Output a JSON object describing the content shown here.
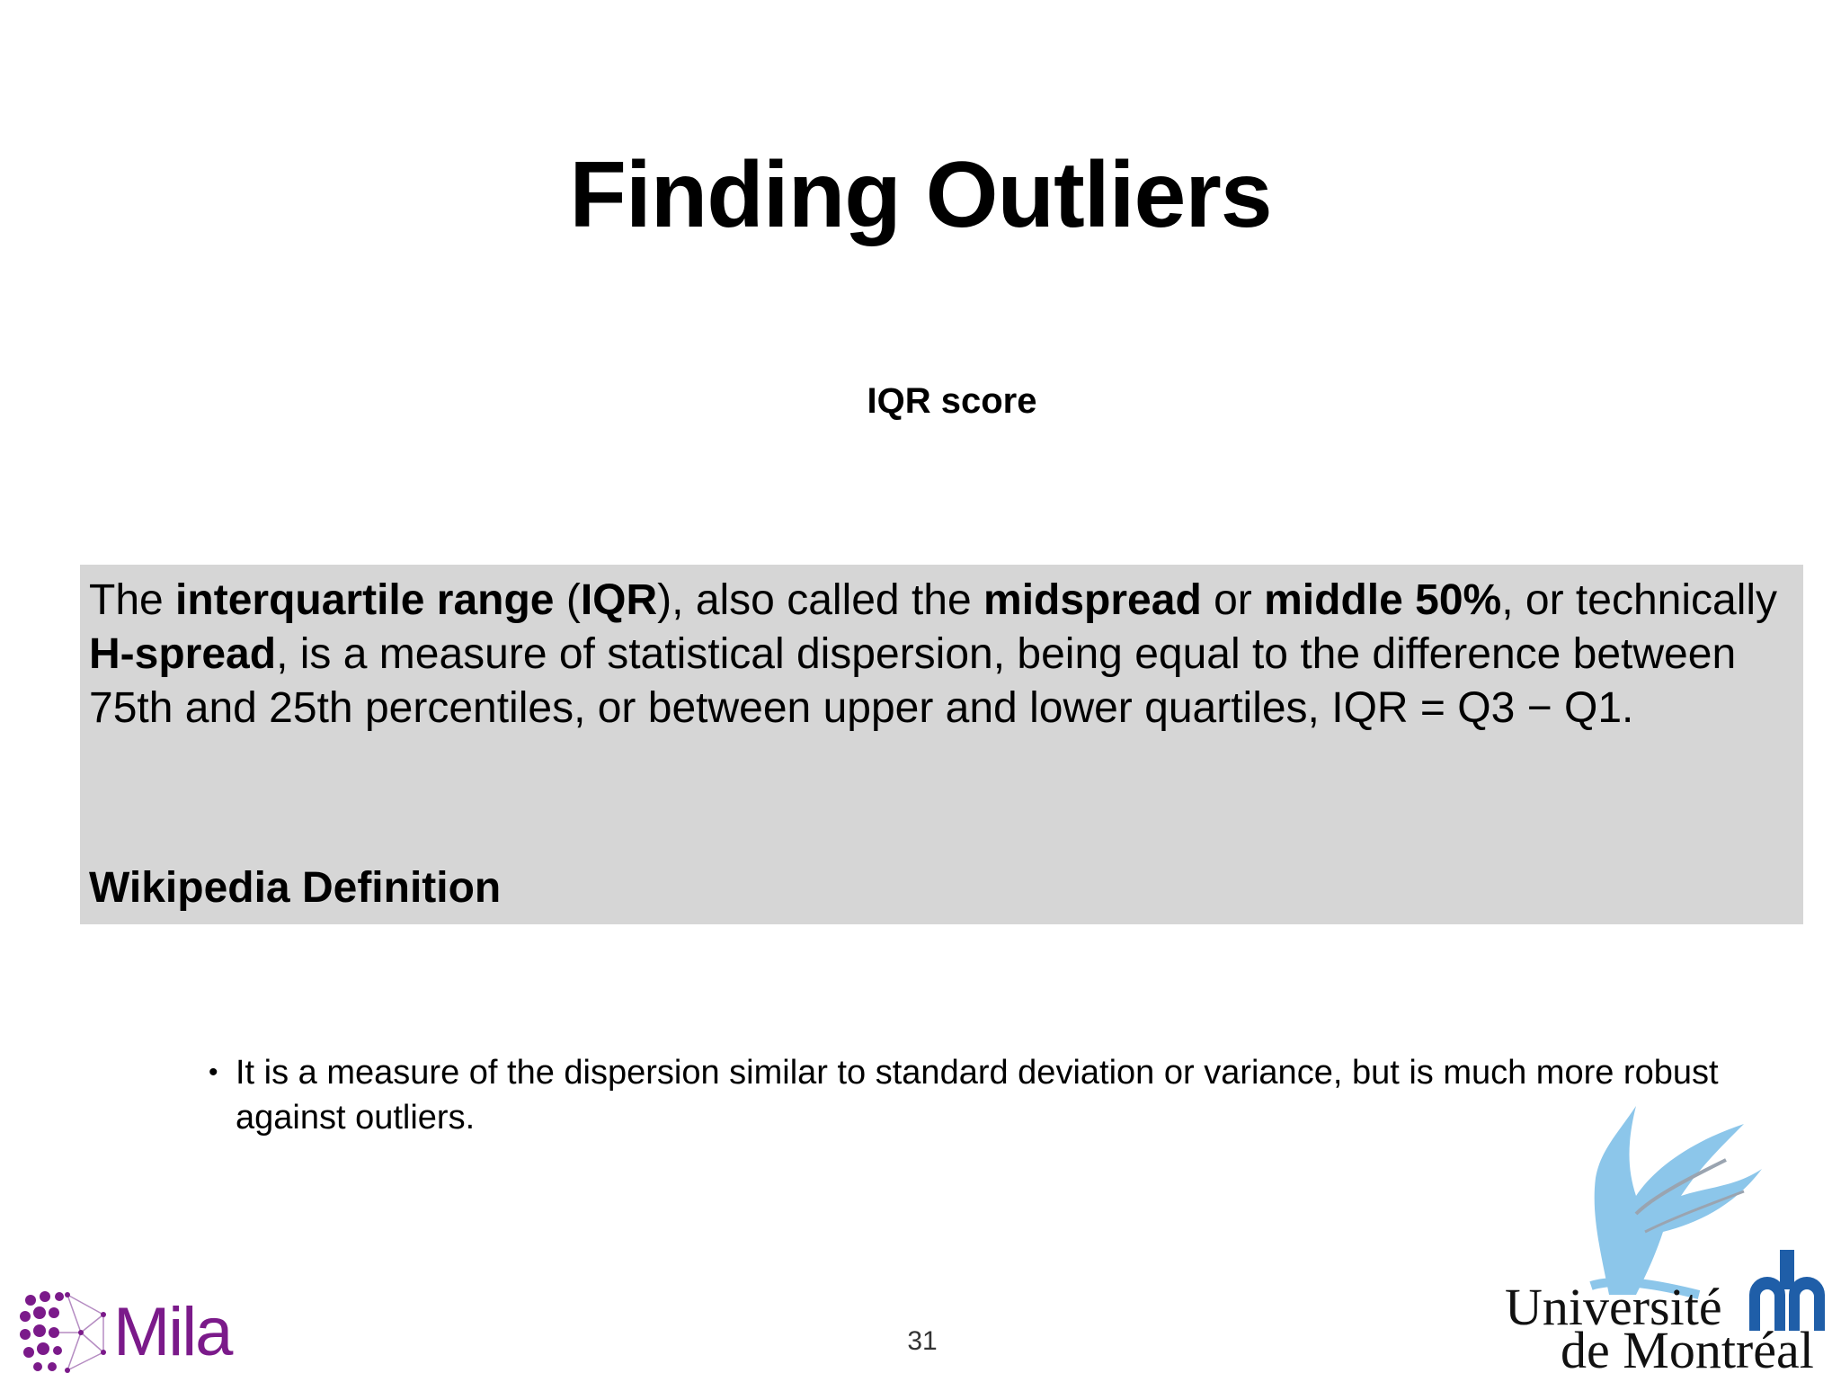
{
  "slide": {
    "title": "Finding Outliers",
    "subtitle": "IQR score",
    "definition": {
      "t1": "The ",
      "b1": "interquartile range",
      "t2": " (",
      "b2": "IQR",
      "t3": "), also called the ",
      "b3": "midspread",
      "t4": " or ",
      "b4": "middle 50%",
      "t5": ", or technically ",
      "b5": "H-spread",
      "t6": ", is a measure of statistical dispersion, being equal to the difference between 75th and 25th percentiles, or between upper and lower quartiles, IQR = Q3 − Q1.",
      "source": "Wikipedia Definition"
    },
    "bullets": [
      "It is a measure of the dispersion similar to standard deviation or variance, but is much more robust against outliers."
    ],
    "page_number": "31"
  },
  "logos": {
    "mila": "Mila",
    "udem_line1": "Université",
    "udem_line2": "de Montréal"
  },
  "colors": {
    "box_bg": "#d6d6d6",
    "mila_purple": "#7b1a8a",
    "udem_blue": "#1f5ea8",
    "bird_light_blue": "#8cc6ea"
  }
}
